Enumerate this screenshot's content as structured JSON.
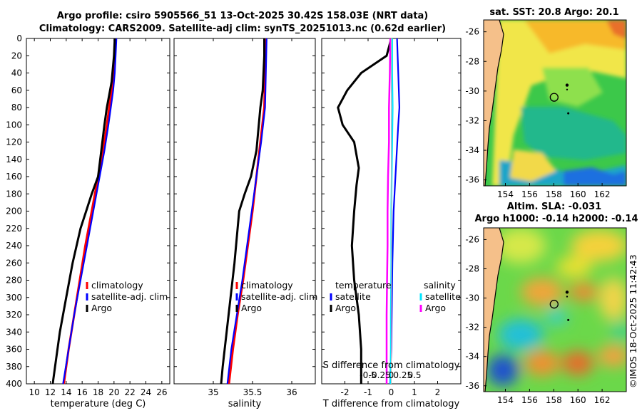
{
  "header": {
    "title_line1": "Argo profile: csiro 5905566_51 13-Oct-2025 30.42S 158.03E (NRT data)",
    "title_line2": "Climatology: CARS2009. Satellite-adj clim: synTS_20251013.nc (0.62d earlier)"
  },
  "colors": {
    "climatology": "#ff0000",
    "satellite_adj": "#0000ff",
    "argo": "#000000",
    "satellite_t": "#0000ff",
    "satellite_s": "#00e5ff",
    "argo_s": "#ff00ff"
  },
  "chart_data": [
    {
      "type": "line",
      "name": "temperature-profile",
      "xlabel": "temperature (deg C)",
      "ylabel": "",
      "xlim": [
        9,
        27
      ],
      "ylim": [
        400,
        0
      ],
      "xticks": [
        10,
        12,
        14,
        16,
        18,
        20,
        22,
        24,
        26
      ],
      "yticks": [
        0,
        20,
        40,
        60,
        80,
        100,
        120,
        140,
        160,
        180,
        200,
        220,
        240,
        260,
        280,
        300,
        320,
        340,
        360,
        380,
        400
      ],
      "legend": [
        "climatology",
        "satellite-adj. clim",
        "Argo"
      ],
      "series": [
        {
          "name": "climatology",
          "depth": [
            0,
            20,
            40,
            60,
            80,
            100,
            130,
            160,
            200,
            240,
            280,
            320,
            360,
            400
          ],
          "values": [
            20.2,
            20.1,
            19.9,
            19.7,
            19.4,
            19.1,
            18.6,
            18.0,
            17.2,
            16.4,
            15.7,
            15.0,
            14.3,
            13.7
          ]
        },
        {
          "name": "satellite-adj. clim",
          "depth": [
            0,
            20,
            40,
            60,
            80,
            100,
            130,
            160,
            200,
            240,
            280,
            320,
            360,
            400
          ],
          "values": [
            20.3,
            20.2,
            20.1,
            19.9,
            19.6,
            19.3,
            18.8,
            18.2,
            17.4,
            16.6,
            15.8,
            15.0,
            14.3,
            13.6
          ]
        },
        {
          "name": "Argo",
          "depth": [
            0,
            20,
            40,
            50,
            60,
            80,
            100,
            130,
            160,
            180,
            200,
            220,
            260,
            300,
            340,
            380,
            400
          ],
          "values": [
            20.1,
            20.0,
            19.8,
            19.7,
            19.5,
            19.1,
            18.8,
            18.4,
            18.0,
            17.2,
            16.5,
            15.8,
            14.8,
            14.0,
            13.2,
            12.6,
            12.3
          ]
        }
      ]
    },
    {
      "type": "line",
      "name": "salinity-profile",
      "xlabel": "salinity",
      "xlim": [
        34.5,
        36.3
      ],
      "ylim": [
        400,
        0
      ],
      "xticks": [
        35,
        35.5,
        36
      ],
      "legend": [
        "climatology",
        "satellite-adj. clim",
        "Argo"
      ],
      "series": [
        {
          "name": "climatology",
          "depth": [
            0,
            40,
            80,
            120,
            160,
            200,
            240,
            280,
            320,
            360,
            400
          ],
          "values": [
            35.66,
            35.66,
            35.65,
            35.6,
            35.55,
            35.5,
            35.44,
            35.38,
            35.31,
            35.25,
            35.2
          ]
        },
        {
          "name": "satellite-adj. clim",
          "depth": [
            0,
            40,
            80,
            120,
            160,
            200,
            240,
            280,
            320,
            360,
            400
          ],
          "values": [
            35.68,
            35.67,
            35.66,
            35.61,
            35.55,
            35.49,
            35.43,
            35.37,
            35.3,
            35.23,
            35.18
          ]
        },
        {
          "name": "Argo",
          "depth": [
            0,
            20,
            40,
            60,
            80,
            100,
            130,
            160,
            180,
            200,
            220,
            260,
            300,
            340,
            380,
            400
          ],
          "values": [
            35.65,
            35.65,
            35.64,
            35.63,
            35.6,
            35.58,
            35.55,
            35.48,
            35.4,
            35.33,
            35.31,
            35.27,
            35.22,
            35.17,
            35.12,
            35.1
          ]
        }
      ]
    },
    {
      "type": "line",
      "name": "difference-profile",
      "xlabel": "T difference from climatology",
      "xlabel_top": "S difference from climatology",
      "xlim": [
        -3,
        3
      ],
      "ylim": [
        400,
        0
      ],
      "xticks": [
        -2,
        -1,
        0,
        1,
        2
      ],
      "xticks_s": [
        -0.5,
        -0.25,
        0,
        0.25,
        0.5
      ],
      "xticks_s_labels": [
        "-0.5",
        "-0.25",
        "0",
        "0.25",
        "0.5"
      ],
      "legend_t_title": "temperature",
      "legend_s_title": "salinity",
      "legend": [
        "satellite",
        "Argo",
        "satellite",
        "Argo"
      ],
      "series": [
        {
          "name": "temperature satellite",
          "depth": [
            0,
            40,
            80,
            100,
            150,
            200,
            260,
            320,
            360,
            400
          ],
          "values": [
            0.25,
            0.3,
            0.35,
            0.3,
            0.2,
            0.1,
            0.05,
            0.02,
            0.0,
            -0.05
          ]
        },
        {
          "name": "temperature Argo",
          "depth": [
            0,
            20,
            40,
            60,
            80,
            100,
            120,
            150,
            170,
            200,
            240,
            280,
            320,
            360,
            400
          ],
          "values": [
            0.0,
            -0.2,
            -1.3,
            -1.9,
            -2.3,
            -2.1,
            -1.6,
            -1.4,
            -1.5,
            -1.6,
            -1.7,
            -1.6,
            -1.4,
            -1.3,
            -1.3
          ]
        },
        {
          "name": "salinity satellite",
          "depth": [
            0,
            40,
            80,
            120,
            160,
            200,
            260,
            320,
            360,
            400
          ],
          "values": [
            0.02,
            0.02,
            0.03,
            0.02,
            0.01,
            0.0,
            0.0,
            -0.01,
            -0.01,
            -0.02
          ]
        },
        {
          "name": "salinity Argo",
          "depth": [
            0,
            40,
            80,
            120,
            160,
            200,
            240,
            280,
            320,
            360,
            400
          ],
          "values": [
            -0.02,
            -0.03,
            -0.05,
            -0.05,
            -0.07,
            -0.08,
            -0.08,
            -0.09,
            -0.1,
            -0.1,
            -0.1
          ]
        }
      ]
    },
    {
      "type": "heatmap",
      "name": "sst-map",
      "title": "sat. SST: 20.8 Argo: 20.1",
      "xlim": [
        152.2,
        164
      ],
      "ylim": [
        -36.4,
        -25.2
      ],
      "xticks": [
        154,
        156,
        158,
        160,
        162
      ],
      "yticks": [
        -26,
        -28,
        -30,
        -32,
        -34,
        -36
      ],
      "argo_position": {
        "lon": 158.03,
        "lat": -30.42
      }
    },
    {
      "type": "heatmap",
      "name": "sla-map",
      "title_line1": "Altim. SLA: -0.031",
      "title_line2": "Argo h1000: -0.14 h2000: -0.14",
      "xlim": [
        152.2,
        164
      ],
      "ylim": [
        -36.4,
        -25.2
      ],
      "xticks": [
        154,
        156,
        158,
        160,
        162
      ],
      "yticks": [
        -26,
        -28,
        -30,
        -32,
        -34,
        -36
      ],
      "argo_position": {
        "lon": 158.03,
        "lat": -30.42
      }
    }
  ],
  "footer": {
    "watermark": "©IMOS 18-Oct-2025 11:42:43"
  }
}
